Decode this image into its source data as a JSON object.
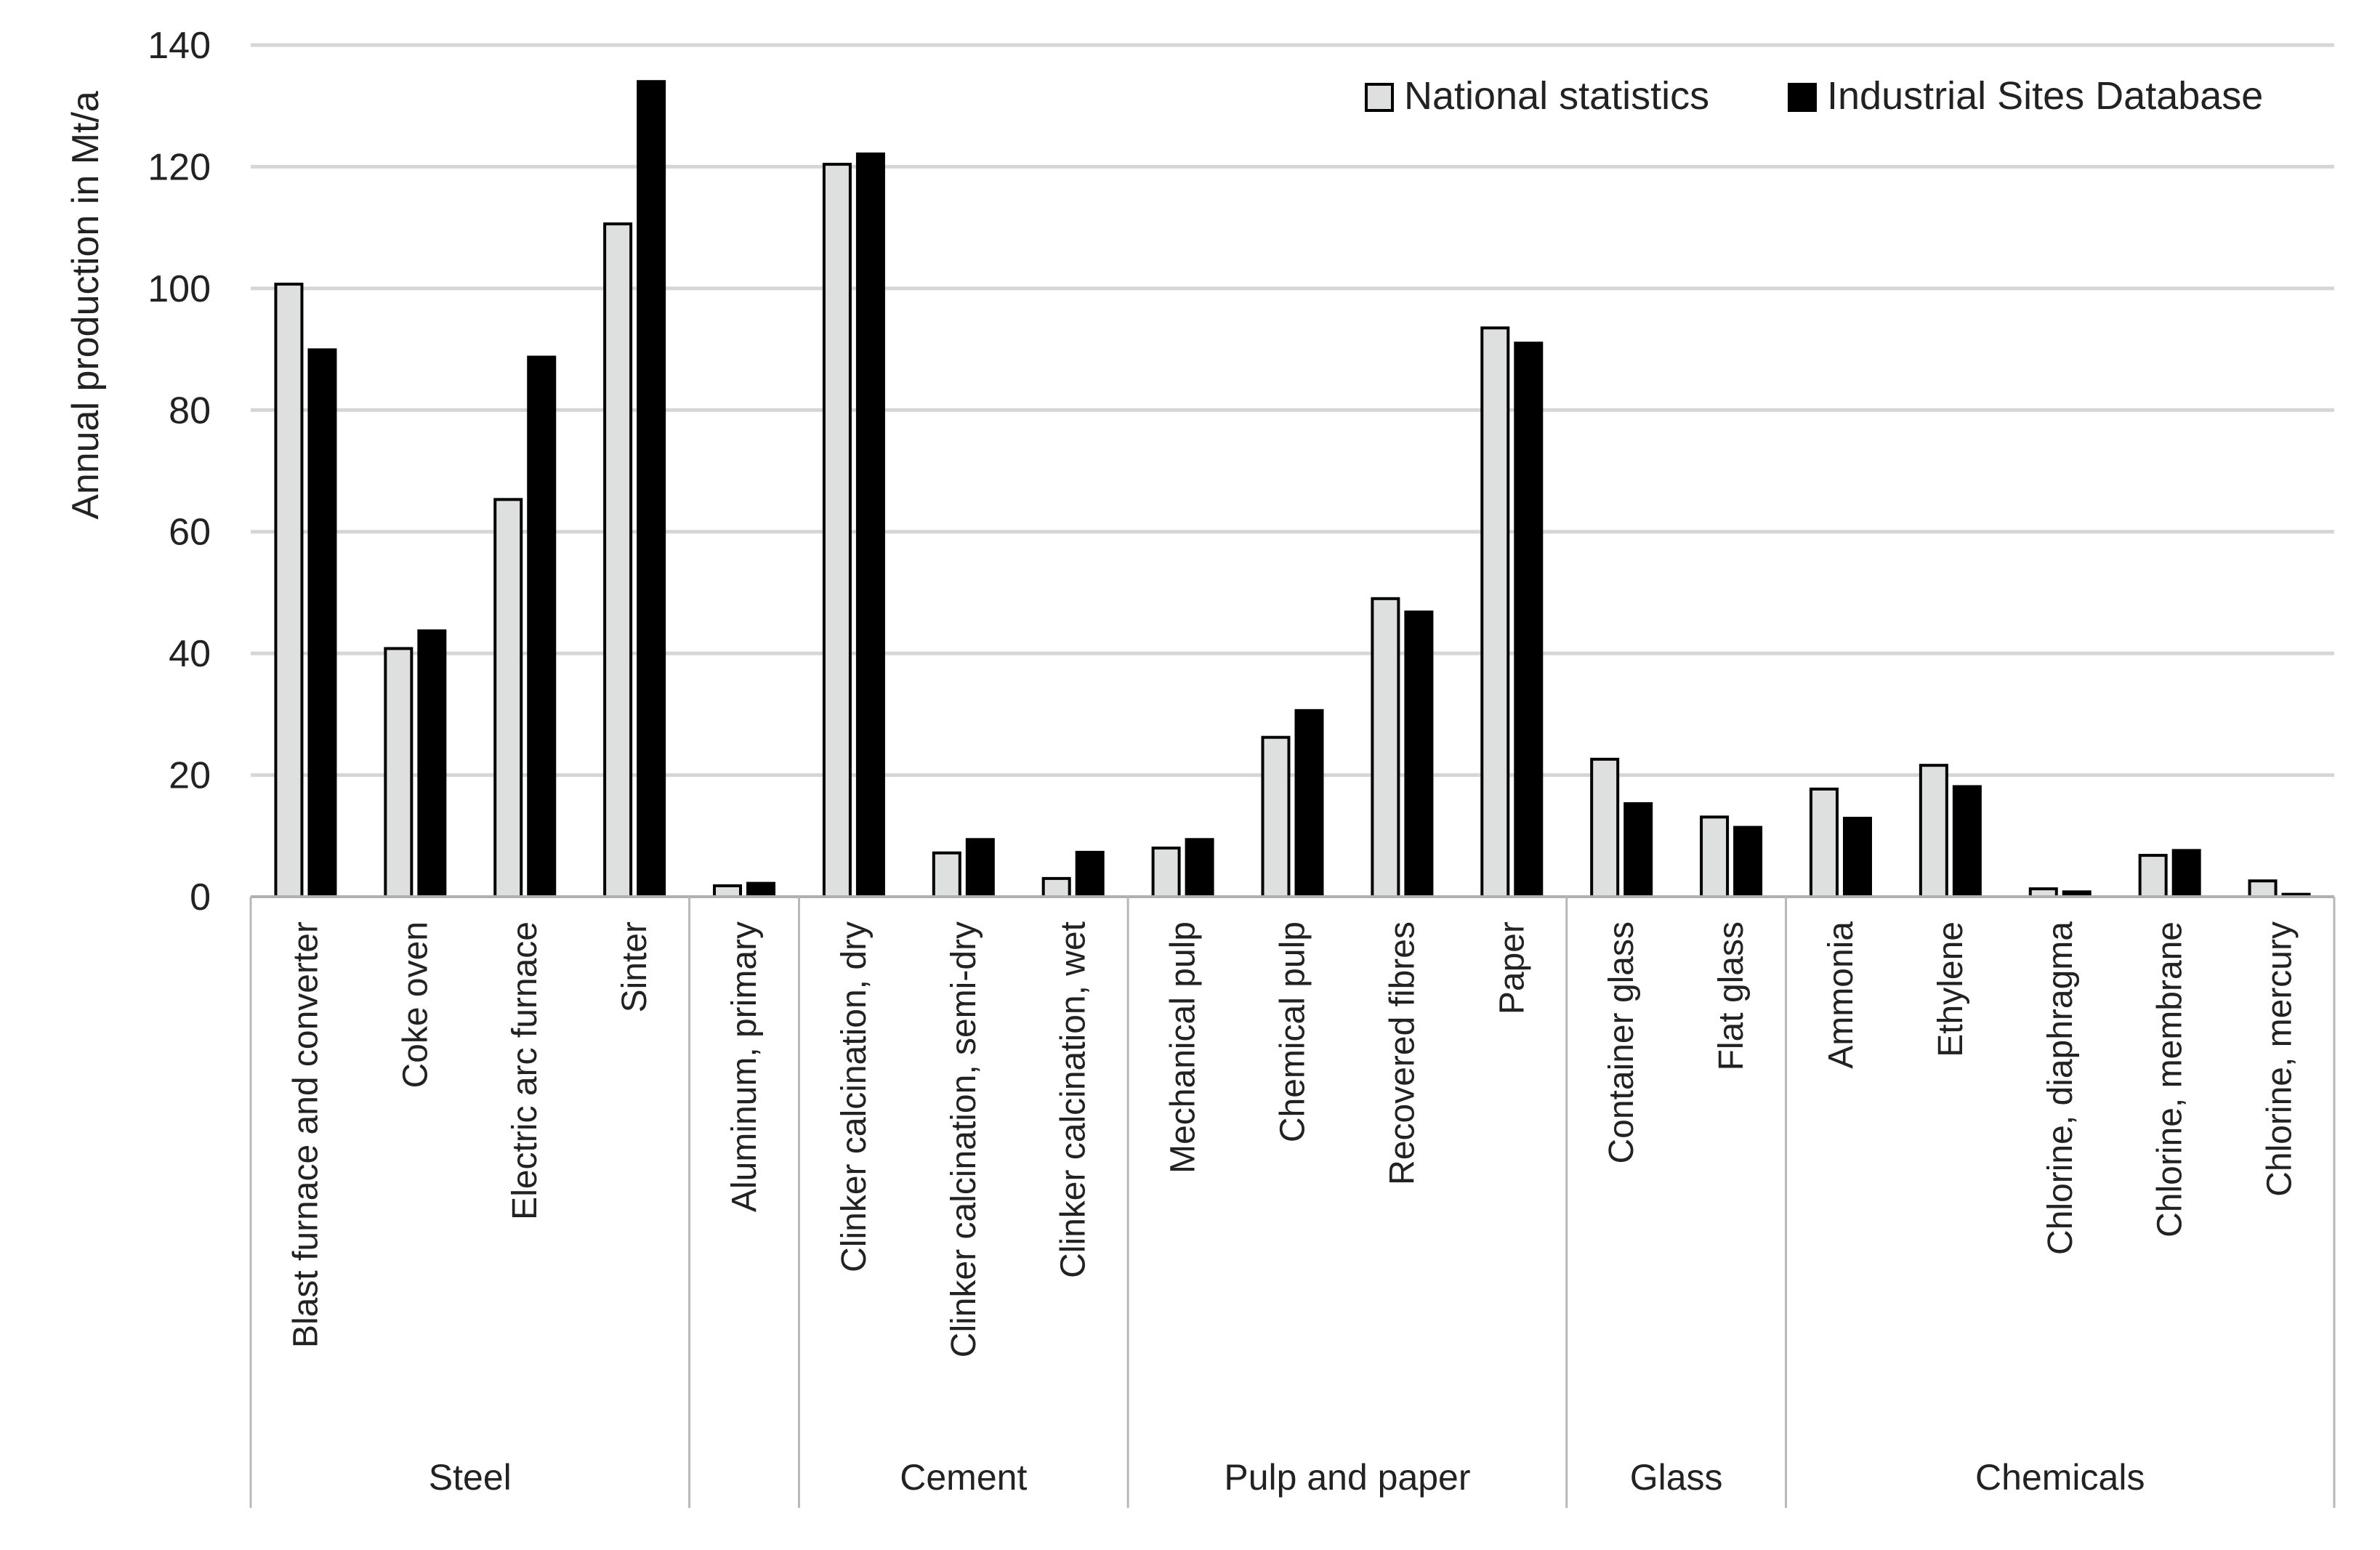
{
  "chart_data": {
    "type": "bar",
    "ylabel": "Annual production in Mt/a",
    "ylim": [
      0,
      140
    ],
    "yticks": [
      0,
      20,
      40,
      60,
      80,
      100,
      120,
      140
    ],
    "grid": true,
    "legend_position": "top-right",
    "categories": [
      "Blast furnace and converter",
      "Coke oven",
      "Electric arc furnace",
      "Sinter",
      "Aluminum, primary",
      "Clinker calcination, dry",
      "Clinker calcination, semi-dry",
      "Clinker calcination, wet",
      "Mechanical pulp",
      "Chemical pulp",
      "Recovered fibres",
      "Paper",
      "Container glass",
      "Flat glass",
      "Ammonia",
      "Ethylene",
      "Chlorine, diaphragma",
      "Chlorine, membrane",
      "Chlorine, mercury"
    ],
    "groups": [
      {
        "name": "Steel",
        "start": 0,
        "end": 3
      },
      {
        "name": "",
        "start": 4,
        "end": 4
      },
      {
        "name": "Cement",
        "start": 5,
        "end": 7
      },
      {
        "name": "Pulp and paper",
        "start": 8,
        "end": 11
      },
      {
        "name": "Glass",
        "start": 12,
        "end": 13
      },
      {
        "name": "Chemicals",
        "start": 14,
        "end": 18
      }
    ],
    "series": [
      {
        "name": "National statistics",
        "color": "#dde0de",
        "values": [
          100.7,
          40.8,
          65.3,
          110.6,
          1.8,
          120.4,
          7.2,
          3.0,
          8.0,
          26.2,
          49.0,
          93.5,
          22.6,
          13.1,
          17.7,
          21.6,
          1.3,
          6.8,
          2.6
        ]
      },
      {
        "name": "Industrial Sites Database",
        "color": "#000000",
        "values": [
          89.9,
          43.7,
          88.7,
          134.0,
          2.2,
          122.1,
          9.4,
          7.3,
          9.4,
          30.6,
          46.8,
          91.0,
          15.3,
          11.4,
          12.9,
          18.1,
          0.8,
          7.6,
          0.4
        ]
      }
    ]
  }
}
